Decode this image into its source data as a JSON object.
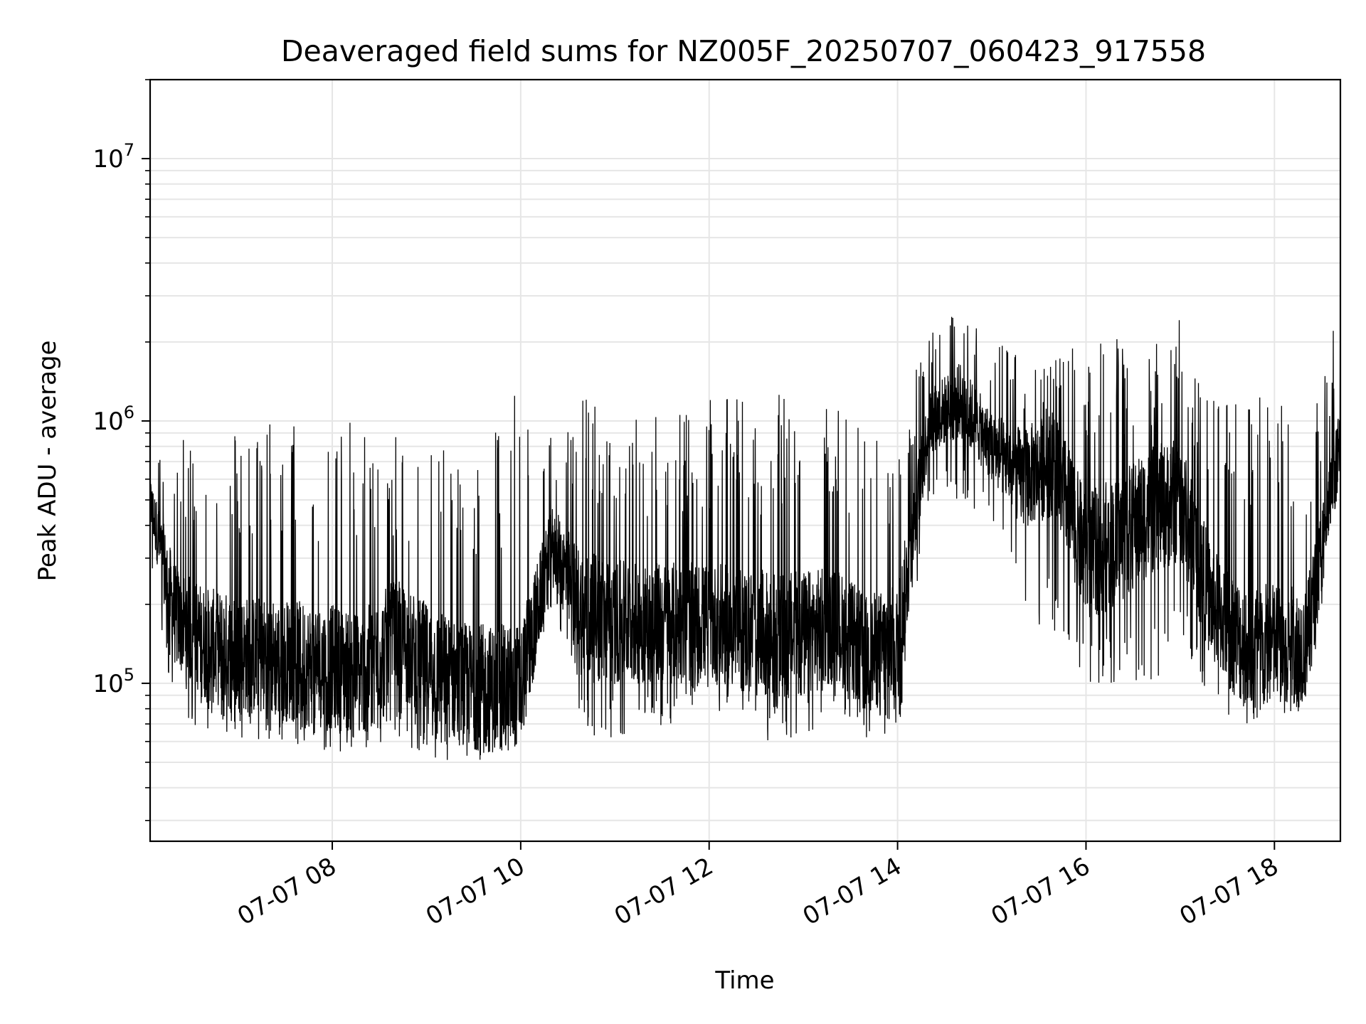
{
  "chart_data": {
    "type": "line",
    "title": "Deaveraged field sums for NZ005F_20250707_060423_917558",
    "xlabel": "Time",
    "ylabel": "Peak ADU - average",
    "yscale": "log",
    "ylim": [
      25000,
      20000000
    ],
    "xlim": [
      "2025-07-07 06:04",
      "2025-07-07 18:42"
    ],
    "grid": true,
    "x_ticks": [
      {
        "value": "2025-07-07 08:00",
        "label": "07-07 08"
      },
      {
        "value": "2025-07-07 10:00",
        "label": "07-07 10"
      },
      {
        "value": "2025-07-07 12:00",
        "label": "07-07 12"
      },
      {
        "value": "2025-07-07 14:00",
        "label": "07-07 14"
      },
      {
        "value": "2025-07-07 16:00",
        "label": "07-07 16"
      },
      {
        "value": "2025-07-07 18:00",
        "label": "07-07 18"
      }
    ],
    "y_ticks": [
      {
        "value": 100000,
        "base": "10",
        "exp": "5"
      },
      {
        "value": 1000000,
        "base": "10",
        "exp": "6"
      },
      {
        "value": 10000000,
        "base": "10",
        "exp": "7"
      }
    ],
    "line_color": "#000000",
    "grid_color": "#e6e6e6",
    "series": [
      {
        "x": [
          "06:04",
          "06:20",
          "06:40",
          "07:00",
          "07:20",
          "07:40",
          "08:00",
          "08:20",
          "08:40",
          "09:00",
          "09:20",
          "09:40",
          "10:00",
          "10:20",
          "10:40",
          "11:00",
          "11:20",
          "11:40",
          "12:00",
          "12:20",
          "12:40",
          "13:00",
          "13:20",
          "13:40",
          "14:00",
          "14:20",
          "14:40",
          "15:00",
          "15:20",
          "15:40",
          "16:00",
          "16:20",
          "16:40",
          "17:00",
          "17:20",
          "17:40",
          "18:00",
          "18:20",
          "18:42"
        ],
        "low": [
          280000,
          75000,
          65000,
          62000,
          60000,
          58000,
          55000,
          55000,
          60000,
          52000,
          48000,
          45000,
          70000,
          200000,
          65000,
          60000,
          65000,
          70000,
          75000,
          65000,
          60000,
          60000,
          85000,
          60000,
          60000,
          500000,
          500000,
          400000,
          180000,
          150000,
          100000,
          100000,
          90000,
          150000,
          80000,
          70000,
          70000,
          75000,
          600000
        ],
        "mid": [
          500000,
          180000,
          140000,
          130000,
          125000,
          120000,
          115000,
          110000,
          150000,
          120000,
          100000,
          95000,
          95000,
          350000,
          180000,
          170000,
          170000,
          170000,
          170000,
          160000,
          150000,
          150000,
          170000,
          130000,
          140000,
          1000000,
          1200000,
          800000,
          600000,
          700000,
          300000,
          350000,
          450000,
          500000,
          200000,
          140000,
          140000,
          140000,
          850000
        ],
        "high": [
          850000,
          820000,
          950000,
          950000,
          1050000,
          1000000,
          1000000,
          1000000,
          900000,
          850000,
          850000,
          900000,
          1500000,
          1000000,
          1400000,
          1100000,
          1100000,
          1200000,
          1200000,
          1250000,
          1250000,
          1300000,
          1200000,
          900000,
          1000000,
          2300000,
          2900000,
          2000000,
          1900000,
          1800000,
          2000000,
          2100000,
          1800000,
          2700000,
          1200000,
          1300000,
          1300000,
          1000000,
          2800000
        ]
      }
    ]
  }
}
